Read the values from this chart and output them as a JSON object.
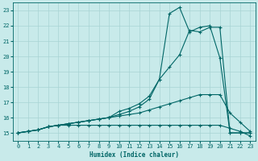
{
  "xlabel": "Humidex (Indice chaleur)",
  "background_color": "#c8eaea",
  "grid_color": "#a8d4d4",
  "line_color": "#006666",
  "xlim": [
    -0.5,
    23.5
  ],
  "ylim": [
    14.5,
    23.5
  ],
  "xticks": [
    0,
    1,
    2,
    3,
    4,
    5,
    6,
    7,
    8,
    9,
    10,
    11,
    12,
    13,
    14,
    15,
    16,
    17,
    18,
    19,
    20,
    21,
    22,
    23
  ],
  "yticks": [
    15,
    16,
    17,
    18,
    19,
    20,
    21,
    22,
    23
  ],
  "line1_x": [
    0,
    1,
    2,
    3,
    4,
    5,
    6,
    7,
    8,
    9,
    10,
    11,
    12,
    13,
    14,
    15,
    16,
    17,
    18,
    19,
    20,
    21,
    22,
    23
  ],
  "line1_y": [
    15.0,
    15.1,
    15.2,
    15.4,
    15.5,
    15.5,
    15.5,
    15.5,
    15.5,
    15.5,
    15.5,
    15.5,
    15.5,
    15.5,
    15.5,
    15.5,
    15.5,
    15.5,
    15.5,
    15.5,
    15.5,
    15.3,
    15.1,
    14.8
  ],
  "line2_x": [
    0,
    1,
    2,
    3,
    4,
    5,
    6,
    7,
    8,
    9,
    10,
    11,
    12,
    13,
    14,
    15,
    16,
    17,
    18,
    19,
    20,
    21,
    22,
    23
  ],
  "line2_y": [
    15.0,
    15.1,
    15.2,
    15.4,
    15.5,
    15.6,
    15.7,
    15.8,
    15.9,
    16.0,
    16.1,
    16.2,
    16.3,
    16.5,
    16.7,
    16.9,
    17.1,
    17.3,
    17.5,
    17.5,
    17.5,
    16.3,
    15.7,
    15.1
  ],
  "line3_x": [
    0,
    1,
    2,
    3,
    4,
    5,
    6,
    7,
    8,
    9,
    10,
    11,
    12,
    13,
    14,
    15,
    16,
    17,
    18,
    19,
    20,
    21,
    22,
    23
  ],
  "line3_y": [
    15.0,
    15.1,
    15.2,
    15.4,
    15.5,
    15.6,
    15.7,
    15.8,
    15.9,
    16.0,
    16.2,
    16.4,
    16.7,
    17.2,
    18.5,
    22.8,
    23.2,
    21.6,
    21.9,
    22.0,
    19.9,
    15.0,
    15.0,
    15.0
  ],
  "line4_x": [
    0,
    1,
    2,
    3,
    4,
    5,
    6,
    7,
    8,
    9,
    10,
    11,
    12,
    13,
    14,
    15,
    16,
    17,
    18,
    19,
    20,
    21,
    22,
    23
  ],
  "line4_y": [
    15.0,
    15.1,
    15.2,
    15.4,
    15.5,
    15.6,
    15.7,
    15.8,
    15.9,
    16.0,
    16.4,
    16.6,
    16.9,
    17.4,
    18.5,
    19.3,
    20.1,
    21.7,
    21.6,
    21.9,
    21.9,
    15.0,
    15.0,
    15.0
  ]
}
